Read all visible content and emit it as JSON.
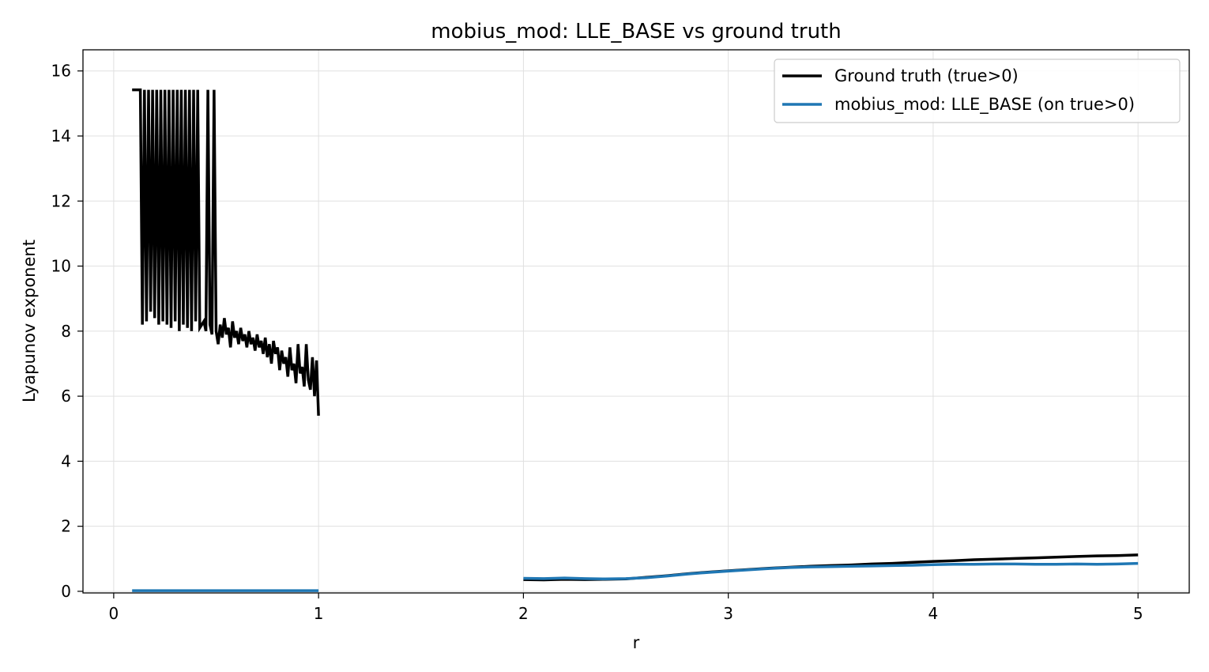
{
  "chart_data": {
    "type": "line",
    "title": "mobius_mod: LLE_BASE vs ground truth",
    "xlabel": "r",
    "ylabel": "Lyapunov exponent",
    "xlim": [
      -0.15,
      5.25
    ],
    "ylim": [
      -0.05,
      16.65
    ],
    "xticks": [
      0,
      1,
      2,
      3,
      4,
      5
    ],
    "yticks": [
      0,
      2,
      4,
      6,
      8,
      10,
      12,
      14,
      16
    ],
    "grid": true,
    "legend_position": "top-right",
    "series": [
      {
        "name": "Ground truth (true>0)",
        "color": "#000000",
        "segments": [
          [
            [
              0.09,
              15.42
            ],
            [
              0.13,
              15.42
            ],
            [
              0.13,
              15.42
            ],
            [
              0.14,
              8.2
            ],
            [
              0.15,
              15.42
            ],
            [
              0.16,
              8.3
            ],
            [
              0.17,
              15.42
            ],
            [
              0.18,
              8.6
            ],
            [
              0.19,
              15.42
            ],
            [
              0.2,
              8.4
            ],
            [
              0.21,
              15.42
            ],
            [
              0.22,
              8.2
            ],
            [
              0.23,
              15.42
            ],
            [
              0.24,
              8.3
            ],
            [
              0.25,
              15.42
            ],
            [
              0.26,
              8.2
            ],
            [
              0.27,
              15.42
            ],
            [
              0.28,
              8.1
            ],
            [
              0.29,
              15.42
            ],
            [
              0.3,
              8.3
            ],
            [
              0.31,
              15.42
            ],
            [
              0.32,
              8.0
            ],
            [
              0.33,
              15.42
            ],
            [
              0.34,
              8.2
            ],
            [
              0.35,
              15.42
            ],
            [
              0.36,
              8.1
            ],
            [
              0.37,
              15.42
            ],
            [
              0.38,
              8.0
            ],
            [
              0.39,
              15.42
            ],
            [
              0.4,
              8.3
            ],
            [
              0.41,
              15.42
            ],
            [
              0.42,
              8.1
            ],
            [
              0.44,
              8.3
            ],
            [
              0.45,
              8.0
            ],
            [
              0.46,
              15.42
            ],
            [
              0.47,
              8.2
            ],
            [
              0.48,
              7.9
            ],
            [
              0.49,
              15.42
            ],
            [
              0.5,
              8.0
            ],
            [
              0.51,
              7.6
            ],
            [
              0.52,
              8.2
            ],
            [
              0.53,
              7.8
            ],
            [
              0.54,
              8.4
            ],
            [
              0.55,
              7.9
            ],
            [
              0.56,
              8.1
            ],
            [
              0.57,
              7.5
            ],
            [
              0.58,
              8.3
            ],
            [
              0.59,
              7.8
            ],
            [
              0.6,
              8.0
            ],
            [
              0.61,
              7.6
            ],
            [
              0.62,
              8.1
            ],
            [
              0.63,
              7.7
            ],
            [
              0.64,
              7.9
            ],
            [
              0.65,
              7.5
            ],
            [
              0.66,
              8.0
            ],
            [
              0.67,
              7.6
            ],
            [
              0.68,
              7.8
            ],
            [
              0.69,
              7.4
            ],
            [
              0.7,
              7.9
            ],
            [
              0.71,
              7.5
            ],
            [
              0.72,
              7.7
            ],
            [
              0.73,
              7.3
            ],
            [
              0.74,
              7.8
            ],
            [
              0.75,
              7.2
            ],
            [
              0.76,
              7.6
            ],
            [
              0.77,
              7.0
            ],
            [
              0.78,
              7.7
            ],
            [
              0.79,
              7.3
            ],
            [
              0.8,
              7.5
            ],
            [
              0.81,
              6.8
            ],
            [
              0.82,
              7.4
            ],
            [
              0.83,
              7.0
            ],
            [
              0.84,
              7.2
            ],
            [
              0.85,
              6.6
            ],
            [
              0.86,
              7.5
            ],
            [
              0.87,
              6.8
            ],
            [
              0.88,
              7.0
            ],
            [
              0.89,
              6.4
            ],
            [
              0.9,
              7.6
            ],
            [
              0.91,
              6.7
            ],
            [
              0.92,
              6.9
            ],
            [
              0.93,
              6.3
            ],
            [
              0.94,
              7.6
            ],
            [
              0.95,
              6.5
            ],
            [
              0.96,
              6.2
            ],
            [
              0.97,
              7.2
            ],
            [
              0.98,
              6.0
            ],
            [
              0.99,
              7.1
            ],
            [
              1.0,
              5.4
            ]
          ],
          [
            [
              2.0,
              0.36
            ],
            [
              2.1,
              0.35
            ],
            [
              2.2,
              0.37
            ],
            [
              2.3,
              0.36
            ],
            [
              2.4,
              0.37
            ],
            [
              2.5,
              0.38
            ],
            [
              2.6,
              0.43
            ],
            [
              2.7,
              0.48
            ],
            [
              2.8,
              0.54
            ],
            [
              2.9,
              0.59
            ],
            [
              3.0,
              0.63
            ],
            [
              3.1,
              0.67
            ],
            [
              3.2,
              0.71
            ],
            [
              3.3,
              0.74
            ],
            [
              3.4,
              0.77
            ],
            [
              3.5,
              0.79
            ],
            [
              3.6,
              0.81
            ],
            [
              3.7,
              0.84
            ],
            [
              3.8,
              0.86
            ],
            [
              3.9,
              0.89
            ],
            [
              4.0,
              0.92
            ],
            [
              4.1,
              0.94
            ],
            [
              4.2,
              0.97
            ],
            [
              4.3,
              0.99
            ],
            [
              4.4,
              1.01
            ],
            [
              4.5,
              1.03
            ],
            [
              4.6,
              1.05
            ],
            [
              4.7,
              1.07
            ],
            [
              4.8,
              1.09
            ],
            [
              4.9,
              1.1
            ],
            [
              5.0,
              1.12
            ]
          ]
        ]
      },
      {
        "name": "mobius_mod: LLE_BASE (on true>0)",
        "color": "#1f77b4",
        "segments": [
          [
            [
              0.09,
              0.02
            ],
            [
              1.0,
              0.02
            ]
          ],
          [
            [
              2.0,
              0.4
            ],
            [
              2.1,
              0.39
            ],
            [
              2.2,
              0.41
            ],
            [
              2.3,
              0.39
            ],
            [
              2.4,
              0.38
            ],
            [
              2.5,
              0.39
            ],
            [
              2.6,
              0.42
            ],
            [
              2.7,
              0.47
            ],
            [
              2.8,
              0.53
            ],
            [
              2.9,
              0.58
            ],
            [
              3.0,
              0.62
            ],
            [
              3.1,
              0.66
            ],
            [
              3.2,
              0.7
            ],
            [
              3.3,
              0.73
            ],
            [
              3.4,
              0.75
            ],
            [
              3.5,
              0.76
            ],
            [
              3.6,
              0.77
            ],
            [
              3.7,
              0.78
            ],
            [
              3.8,
              0.79
            ],
            [
              3.9,
              0.8
            ],
            [
              4.0,
              0.82
            ],
            [
              4.1,
              0.83
            ],
            [
              4.2,
              0.83
            ],
            [
              4.3,
              0.84
            ],
            [
              4.4,
              0.84
            ],
            [
              4.5,
              0.83
            ],
            [
              4.6,
              0.83
            ],
            [
              4.7,
              0.84
            ],
            [
              4.8,
              0.83
            ],
            [
              4.9,
              0.84
            ],
            [
              5.0,
              0.86
            ]
          ]
        ]
      }
    ]
  }
}
